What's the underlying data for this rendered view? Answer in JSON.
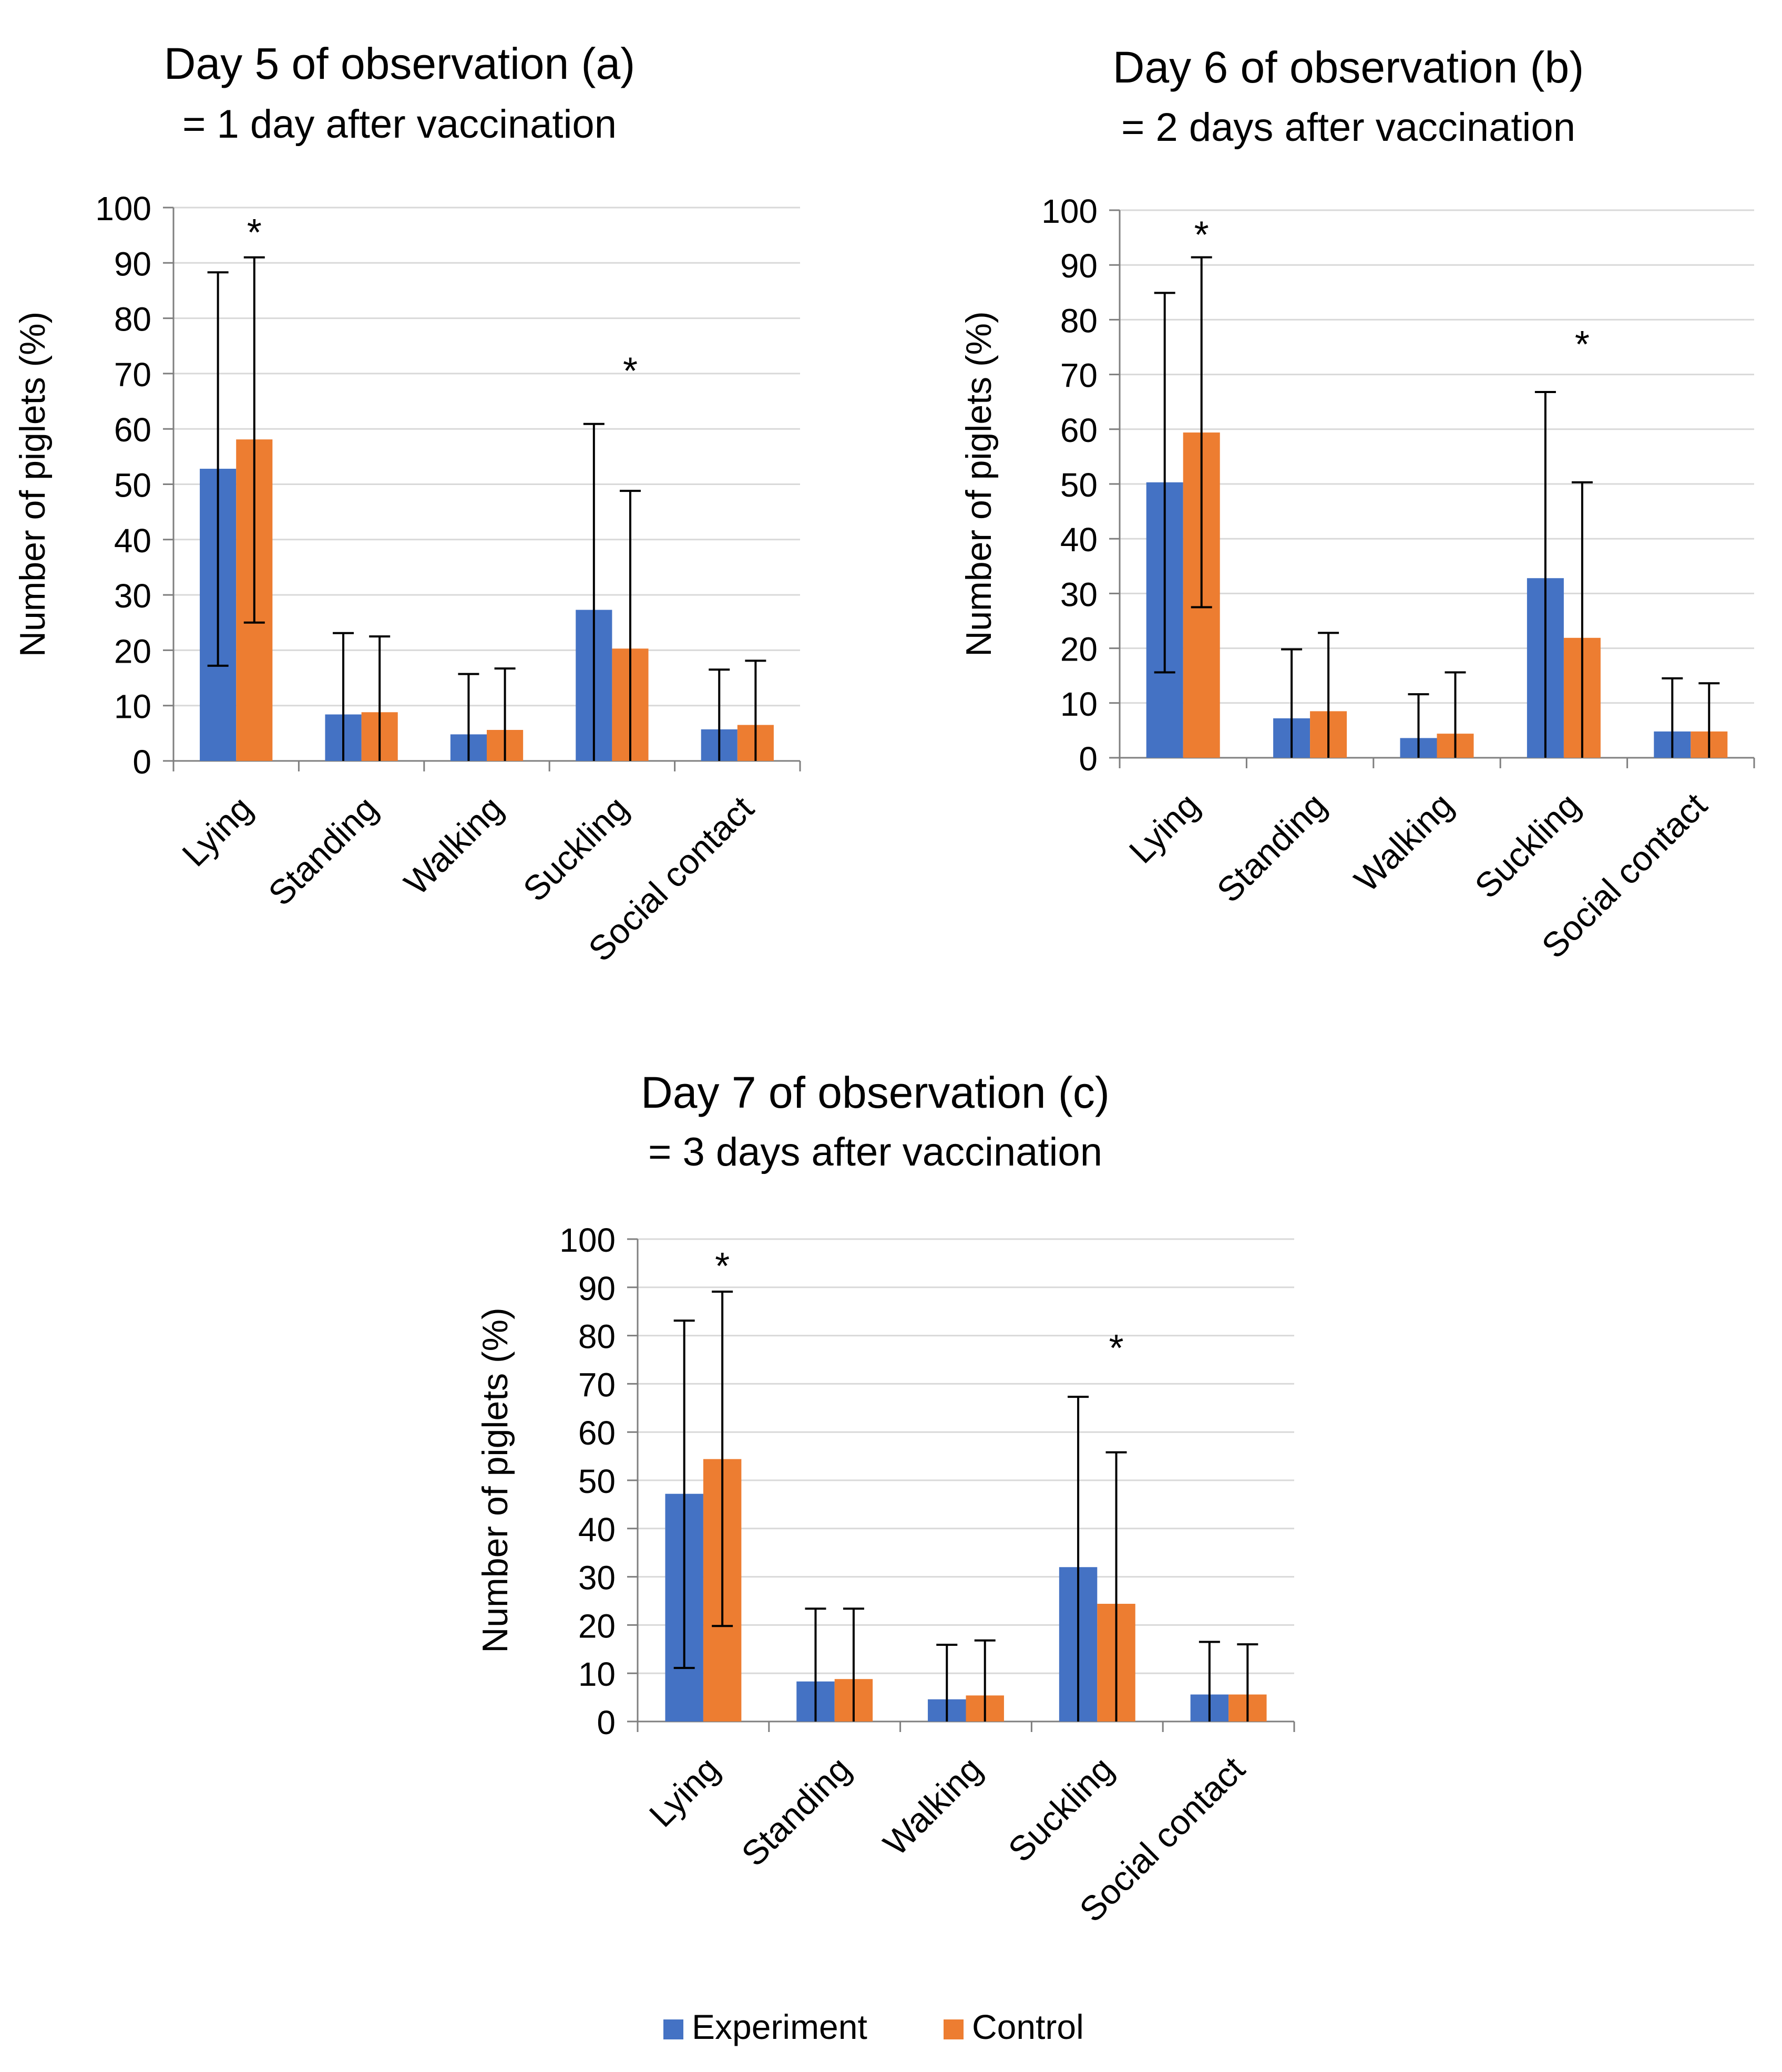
{
  "legend": {
    "items": [
      {
        "label": "Experiment",
        "color": "#4472C4"
      },
      {
        "label": "Control",
        "color": "#ED7D31"
      }
    ]
  },
  "chart_data": [
    {
      "type": "bar",
      "title": "Day 5 of observation (a)",
      "subtitle": "= 1 day after vaccination",
      "ylabel": "Number of piglets (%)",
      "ylim": [
        0,
        100
      ],
      "yticks": [
        "0",
        "10",
        "20",
        "30",
        "40",
        "50",
        "60",
        "70",
        "80",
        "90",
        "100"
      ],
      "categories": [
        "Lying",
        "Standing",
        "Walking",
        "Suckling",
        "Social contact"
      ],
      "series": [
        {
          "name": "Experiment",
          "values": [
            52.8,
            8.4,
            4.8,
            27.3,
            5.7
          ],
          "err_hi": [
            88.3,
            23.1,
            15.7,
            60.9,
            16.5
          ],
          "err_lo": [
            17.2,
            0,
            0,
            0,
            0
          ]
        },
        {
          "name": "Control",
          "values": [
            58.1,
            8.8,
            5.6,
            20.3,
            6.5
          ],
          "err_hi": [
            91.0,
            22.5,
            16.7,
            48.8,
            18.1
          ],
          "err_lo": [
            25.0,
            0,
            0,
            0,
            0
          ]
        }
      ],
      "annotations": [
        {
          "text": "*",
          "category": "Lying",
          "series": "Control",
          "y": 96
        },
        {
          "text": "*",
          "category": "Suckling",
          "series": "Control",
          "y": 71
        }
      ],
      "grid": true,
      "legend": "bottom"
    },
    {
      "type": "bar",
      "title": "Day 6 of observation (b)",
      "subtitle": "= 2 days after vaccination",
      "ylabel": "Number of piglets (%)",
      "ylim": [
        0,
        100
      ],
      "yticks": [
        "0",
        "10",
        "20",
        "30",
        "40",
        "50",
        "60",
        "70",
        "80",
        "90",
        "100"
      ],
      "categories": [
        "Lying",
        "Standing",
        "Walking",
        "Suckling",
        "Social contact"
      ],
      "series": [
        {
          "name": "Experiment",
          "values": [
            50.3,
            7.2,
            3.6,
            32.8,
            4.8
          ],
          "err_hi": [
            84.9,
            19.8,
            11.6,
            66.8,
            14.5
          ],
          "err_lo": [
            15.6,
            0,
            0,
            0,
            0
          ]
        },
        {
          "name": "Control",
          "values": [
            59.4,
            8.5,
            4.4,
            21.9,
            4.8
          ],
          "err_hi": [
            91.4,
            22.8,
            15.6,
            50.3,
            13.6
          ],
          "err_lo": [
            27.5,
            0,
            0,
            0,
            0
          ]
        }
      ],
      "annotations": [
        {
          "text": "*",
          "category": "Lying",
          "series": "Control",
          "y": 96
        },
        {
          "text": "*",
          "category": "Suckling",
          "series": "Control",
          "y": 76
        }
      ],
      "grid": true,
      "legend": "bottom"
    },
    {
      "type": "bar",
      "title": "Day 7 of observation (c)",
      "subtitle": "= 3 days after vaccination",
      "ylabel": "Number of piglets (%)",
      "ylim": [
        0,
        100
      ],
      "yticks": [
        "0",
        "10",
        "20",
        "30",
        "40",
        "50",
        "60",
        "70",
        "80",
        "90",
        "100"
      ],
      "categories": [
        "Lying",
        "Standing",
        "Walking",
        "Suckling",
        "Social contact"
      ],
      "series": [
        {
          "name": "Experiment",
          "values": [
            47.2,
            8.3,
            4.6,
            32.0,
            5.6
          ],
          "err_hi": [
            83.1,
            23.4,
            15.9,
            67.3,
            16.5
          ],
          "err_lo": [
            11.1,
            0,
            0,
            0,
            0
          ]
        },
        {
          "name": "Control",
          "values": [
            54.4,
            8.8,
            5.4,
            24.4,
            5.6
          ],
          "err_hi": [
            89.1,
            23.4,
            16.8,
            55.8,
            16.0
          ],
          "err_lo": [
            19.8,
            0,
            0,
            0,
            0
          ]
        }
      ],
      "annotations": [
        {
          "text": "*",
          "category": "Lying",
          "series": "Control",
          "y": 95
        },
        {
          "text": "*",
          "category": "Suckling",
          "series": "Control",
          "y": 78
        }
      ],
      "grid": true,
      "legend": "bottom"
    }
  ]
}
